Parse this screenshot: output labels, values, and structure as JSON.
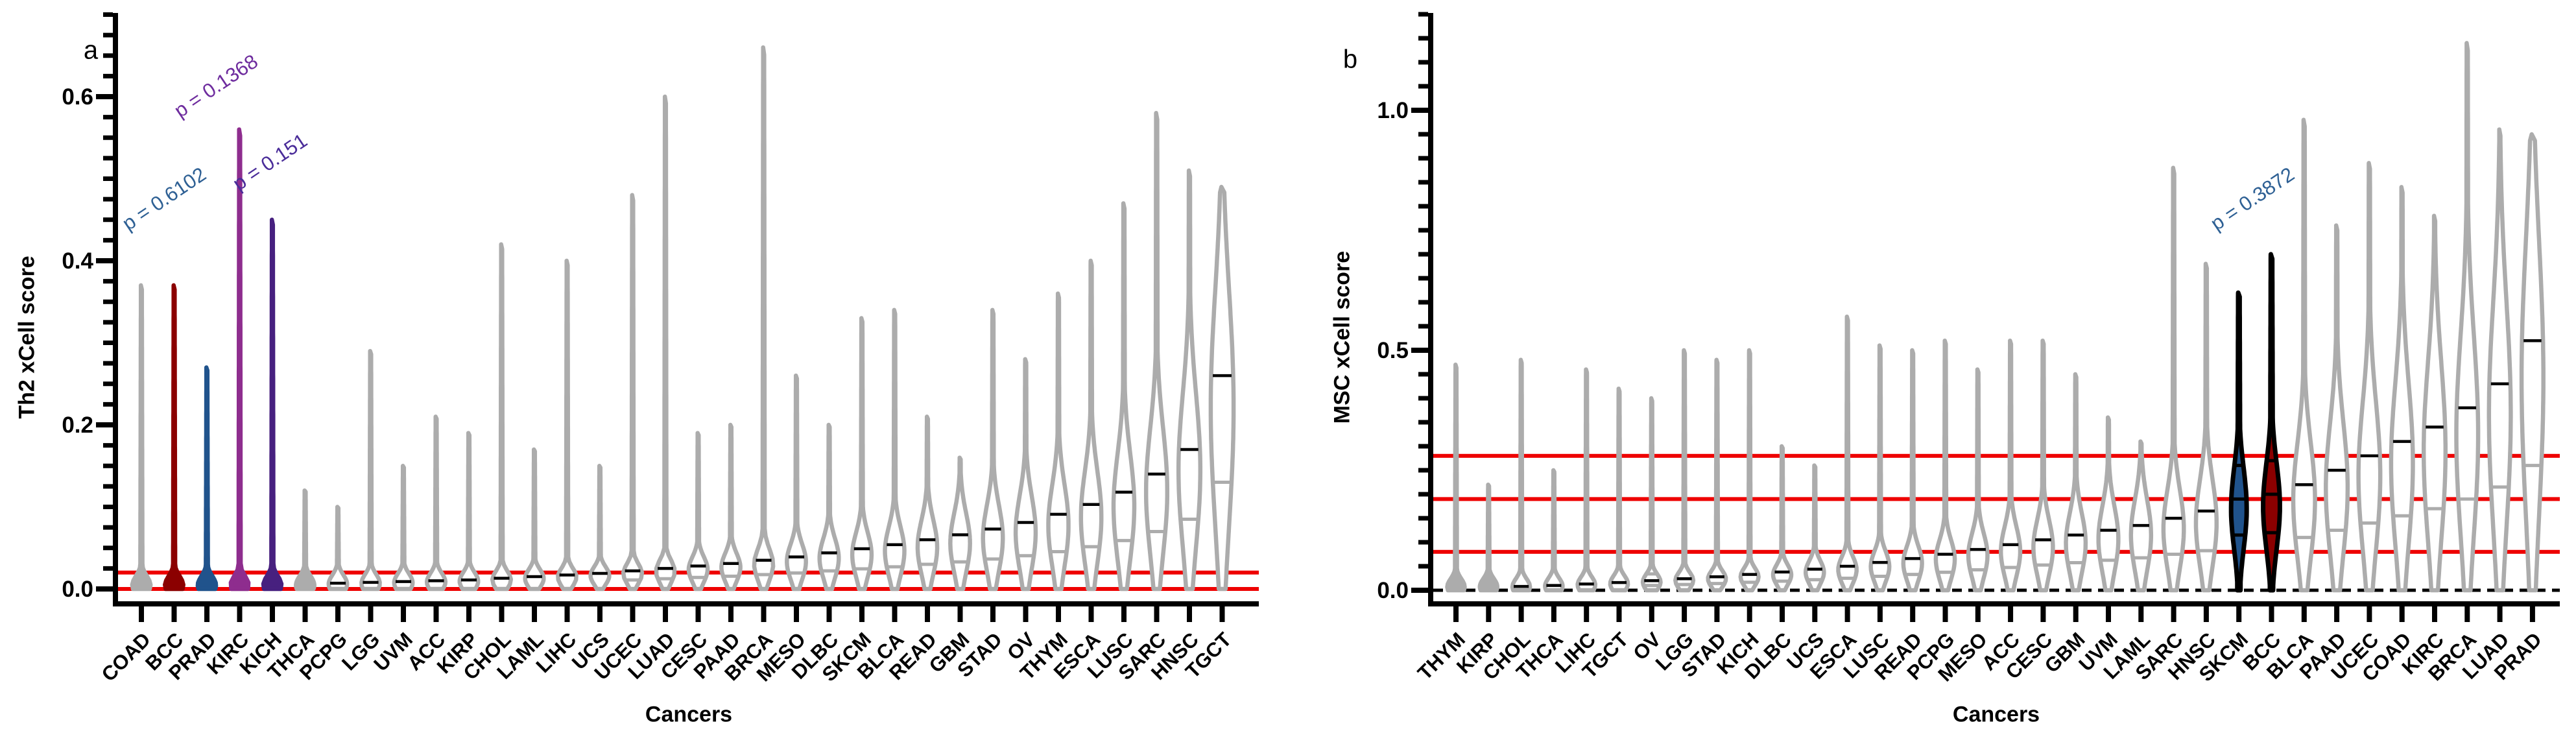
{
  "chart_data": [
    {
      "type": "violin",
      "panel_label": "a",
      "ylabel": "Th2 xCell score",
      "xlabel": "Cancers",
      "ylim": [
        0,
        0.7
      ],
      "y_major_ticks": [
        0.0,
        0.2,
        0.4,
        0.6
      ],
      "y_tick_labels": [
        "0.0",
        "0.2",
        "0.4",
        "0.6"
      ],
      "y_minor_step": 0.025,
      "grid": "off",
      "reference_lines": [
        {
          "y": 0.02,
          "color": "#EE0000",
          "style": "solid"
        },
        {
          "y": 0.0,
          "color": "#EE0000",
          "style": "solid"
        }
      ],
      "annotations": [
        {
          "text": "p = 0.6102",
          "color": "#2E6094",
          "cancer": "PRAD"
        },
        {
          "text": "p = 0.1368",
          "color": "#6E2C9E",
          "cancer": "KIRC"
        },
        {
          "text": "p = 0.151",
          "color": "#4A2C99",
          "cancer": "KICH"
        }
      ],
      "categories": [
        "COAD",
        "BCC",
        "PRAD",
        "KIRC",
        "KICH",
        "THCA",
        "PCPG",
        "LGG",
        "UVM",
        "ACC",
        "KIRP",
        "CHOL",
        "LAML",
        "LIHC",
        "UCS",
        "UCEC",
        "LUAD",
        "CESC",
        "PAAD",
        "BRCA",
        "MESO",
        "DLBC",
        "SKCM",
        "BLCA",
        "READ",
        "GBM",
        "STAD",
        "OV",
        "THYM",
        "ESCA",
        "LUSC",
        "SARC",
        "HNSC",
        "TGCT"
      ],
      "series": [
        {
          "cancer": "COAD",
          "max": 0.37,
          "median": 0.004,
          "fill": "#ACACAC",
          "stroke": "#ACACAC"
        },
        {
          "cancer": "BCC",
          "max": 0.37,
          "median": 0.004,
          "fill": "#8B0000",
          "stroke": "#8B0000"
        },
        {
          "cancer": "PRAD",
          "max": 0.27,
          "median": 0.004,
          "fill": "#20538C",
          "stroke": "#20538C"
        },
        {
          "cancer": "KIRC",
          "max": 0.56,
          "median": 0.005,
          "fill": "#8E2D8E",
          "stroke": "#8E2D8E"
        },
        {
          "cancer": "KICH",
          "max": 0.45,
          "median": 0.005,
          "fill": "#47207F",
          "stroke": "#47207F"
        },
        {
          "cancer": "THCA",
          "max": 0.12,
          "median": 0.005,
          "fill": "#ACACAC",
          "stroke": "#ACACAC"
        },
        {
          "cancer": "PCPG",
          "max": 0.1,
          "median": 0.007,
          "fill": "#FFFFFF",
          "stroke": "#ACACAC"
        },
        {
          "cancer": "LGG",
          "max": 0.29,
          "median": 0.008,
          "fill": "#FFFFFF",
          "stroke": "#ACACAC"
        },
        {
          "cancer": "UVM",
          "max": 0.15,
          "median": 0.009,
          "fill": "#FFFFFF",
          "stroke": "#ACACAC"
        },
        {
          "cancer": "ACC",
          "max": 0.21,
          "median": 0.01,
          "fill": "#FFFFFF",
          "stroke": "#ACACAC"
        },
        {
          "cancer": "KIRP",
          "max": 0.19,
          "median": 0.011,
          "fill": "#FFFFFF",
          "stroke": "#ACACAC"
        },
        {
          "cancer": "CHOL",
          "max": 0.42,
          "median": 0.013,
          "fill": "#FFFFFF",
          "stroke": "#ACACAC"
        },
        {
          "cancer": "LAML",
          "max": 0.17,
          "median": 0.015,
          "fill": "#FFFFFF",
          "stroke": "#ACACAC"
        },
        {
          "cancer": "LIHC",
          "max": 0.4,
          "median": 0.017,
          "fill": "#FFFFFF",
          "stroke": "#ACACAC"
        },
        {
          "cancer": "UCS",
          "max": 0.15,
          "median": 0.019,
          "fill": "#FFFFFF",
          "stroke": "#ACACAC"
        },
        {
          "cancer": "UCEC",
          "max": 0.48,
          "median": 0.022,
          "fill": "#FFFFFF",
          "stroke": "#ACACAC"
        },
        {
          "cancer": "LUAD",
          "max": 0.6,
          "median": 0.025,
          "fill": "#FFFFFF",
          "stroke": "#ACACAC"
        },
        {
          "cancer": "CESC",
          "max": 0.19,
          "median": 0.028,
          "fill": "#FFFFFF",
          "stroke": "#ACACAC"
        },
        {
          "cancer": "PAAD",
          "max": 0.2,
          "median": 0.031,
          "fill": "#FFFFFF",
          "stroke": "#ACACAC"
        },
        {
          "cancer": "BRCA",
          "max": 0.66,
          "median": 0.035,
          "fill": "#FFFFFF",
          "stroke": "#ACACAC"
        },
        {
          "cancer": "MESO",
          "max": 0.26,
          "median": 0.039,
          "fill": "#FFFFFF",
          "stroke": "#ACACAC"
        },
        {
          "cancer": "DLBC",
          "max": 0.2,
          "median": 0.044,
          "fill": "#FFFFFF",
          "stroke": "#ACACAC"
        },
        {
          "cancer": "SKCM",
          "max": 0.33,
          "median": 0.049,
          "fill": "#FFFFFF",
          "stroke": "#ACACAC"
        },
        {
          "cancer": "BLCA",
          "max": 0.34,
          "median": 0.054,
          "fill": "#FFFFFF",
          "stroke": "#ACACAC"
        },
        {
          "cancer": "READ",
          "max": 0.21,
          "median": 0.06,
          "fill": "#FFFFFF",
          "stroke": "#ACACAC"
        },
        {
          "cancer": "GBM",
          "max": 0.16,
          "median": 0.066,
          "fill": "#FFFFFF",
          "stroke": "#ACACAC"
        },
        {
          "cancer": "STAD",
          "max": 0.34,
          "median": 0.073,
          "fill": "#FFFFFF",
          "stroke": "#ACACAC"
        },
        {
          "cancer": "OV",
          "max": 0.28,
          "median": 0.081,
          "fill": "#FFFFFF",
          "stroke": "#ACACAC"
        },
        {
          "cancer": "THYM",
          "max": 0.36,
          "median": 0.091,
          "fill": "#FFFFFF",
          "stroke": "#ACACAC"
        },
        {
          "cancer": "ESCA",
          "max": 0.4,
          "median": 0.103,
          "fill": "#FFFFFF",
          "stroke": "#ACACAC"
        },
        {
          "cancer": "LUSC",
          "max": 0.47,
          "median": 0.118,
          "fill": "#FFFFFF",
          "stroke": "#ACACAC"
        },
        {
          "cancer": "SARC",
          "max": 0.58,
          "median": 0.14,
          "fill": "#FFFFFF",
          "stroke": "#ACACAC"
        },
        {
          "cancer": "HNSC",
          "max": 0.51,
          "median": 0.17,
          "fill": "#FFFFFF",
          "stroke": "#ACACAC"
        },
        {
          "cancer": "TGCT",
          "max": 0.49,
          "median": 0.26,
          "fill": "#FFFFFF",
          "stroke": "#ACACAC"
        }
      ]
    },
    {
      "type": "violin",
      "panel_label": "b",
      "ylabel": "MSC xCell score",
      "xlabel": "Cancers",
      "ylim": [
        0,
        1.2
      ],
      "y_major_ticks": [
        0.0,
        0.5,
        1.0
      ],
      "y_tick_labels": [
        "0.0",
        "0.5",
        "1.0"
      ],
      "y_minor_step": 0.05,
      "grid": "off",
      "reference_lines": [
        {
          "y": 0.28,
          "color": "#EE0000",
          "style": "solid"
        },
        {
          "y": 0.19,
          "color": "#EE0000",
          "style": "solid"
        },
        {
          "y": 0.08,
          "color": "#EE0000",
          "style": "solid"
        },
        {
          "y": 0.0,
          "color": "#000000",
          "style": "dashed"
        }
      ],
      "annotations": [
        {
          "text": "p = 0.3872",
          "color": "#2E6094",
          "cancer": "SKCM"
        }
      ],
      "categories": [
        "THYM",
        "KIRP",
        "CHOL",
        "THCA",
        "LIHC",
        "TGCT",
        "OV",
        "LGG",
        "STAD",
        "KICH",
        "DLBC",
        "UCS",
        "ESCA",
        "LUSC",
        "READ",
        "PCPG",
        "MESO",
        "ACC",
        "CESC",
        "GBM",
        "UVM",
        "LAML",
        "SARC",
        "HNSC",
        "SKCM",
        "BCC",
        "BLCA",
        "PAAD",
        "UCEC",
        "COAD",
        "KIRC",
        "BRCA",
        "LUAD",
        "PRAD"
      ],
      "series": [
        {
          "cancer": "THYM",
          "max": 0.47,
          "median": 0.004,
          "fill": "#ACACAC",
          "stroke": "#ACACAC"
        },
        {
          "cancer": "KIRP",
          "max": 0.22,
          "median": 0.006,
          "fill": "#ACACAC",
          "stroke": "#ACACAC"
        },
        {
          "cancer": "CHOL",
          "max": 0.48,
          "median": 0.008,
          "fill": "#FFFFFF",
          "stroke": "#ACACAC"
        },
        {
          "cancer": "THCA",
          "max": 0.25,
          "median": 0.01,
          "fill": "#FFFFFF",
          "stroke": "#ACACAC"
        },
        {
          "cancer": "LIHC",
          "max": 0.46,
          "median": 0.013,
          "fill": "#FFFFFF",
          "stroke": "#ACACAC"
        },
        {
          "cancer": "TGCT",
          "max": 0.42,
          "median": 0.016,
          "fill": "#FFFFFF",
          "stroke": "#ACACAC"
        },
        {
          "cancer": "OV",
          "max": 0.4,
          "median": 0.02,
          "fill": "#FFFFFF",
          "stroke": "#ACACAC"
        },
        {
          "cancer": "LGG",
          "max": 0.5,
          "median": 0.024,
          "fill": "#FFFFFF",
          "stroke": "#ACACAC"
        },
        {
          "cancer": "STAD",
          "max": 0.48,
          "median": 0.028,
          "fill": "#FFFFFF",
          "stroke": "#ACACAC"
        },
        {
          "cancer": "KICH",
          "max": 0.5,
          "median": 0.033,
          "fill": "#FFFFFF",
          "stroke": "#ACACAC"
        },
        {
          "cancer": "DLBC",
          "max": 0.3,
          "median": 0.038,
          "fill": "#FFFFFF",
          "stroke": "#ACACAC"
        },
        {
          "cancer": "UCS",
          "max": 0.26,
          "median": 0.044,
          "fill": "#FFFFFF",
          "stroke": "#ACACAC"
        },
        {
          "cancer": "ESCA",
          "max": 0.57,
          "median": 0.05,
          "fill": "#FFFFFF",
          "stroke": "#ACACAC"
        },
        {
          "cancer": "LUSC",
          "max": 0.51,
          "median": 0.058,
          "fill": "#FFFFFF",
          "stroke": "#ACACAC"
        },
        {
          "cancer": "READ",
          "max": 0.5,
          "median": 0.066,
          "fill": "#FFFFFF",
          "stroke": "#ACACAC"
        },
        {
          "cancer": "PCPG",
          "max": 0.52,
          "median": 0.075,
          "fill": "#FFFFFF",
          "stroke": "#ACACAC"
        },
        {
          "cancer": "MESO",
          "max": 0.46,
          "median": 0.085,
          "fill": "#FFFFFF",
          "stroke": "#ACACAC"
        },
        {
          "cancer": "ACC",
          "max": 0.52,
          "median": 0.095,
          "fill": "#FFFFFF",
          "stroke": "#ACACAC"
        },
        {
          "cancer": "CESC",
          "max": 0.52,
          "median": 0.105,
          "fill": "#FFFFFF",
          "stroke": "#ACACAC"
        },
        {
          "cancer": "GBM",
          "max": 0.45,
          "median": 0.115,
          "fill": "#FFFFFF",
          "stroke": "#ACACAC"
        },
        {
          "cancer": "UVM",
          "max": 0.36,
          "median": 0.125,
          "fill": "#FFFFFF",
          "stroke": "#ACACAC"
        },
        {
          "cancer": "LAML",
          "max": 0.31,
          "median": 0.135,
          "fill": "#FFFFFF",
          "stroke": "#ACACAC"
        },
        {
          "cancer": "SARC",
          "max": 0.88,
          "median": 0.15,
          "fill": "#FFFFFF",
          "stroke": "#ACACAC"
        },
        {
          "cancer": "HNSC",
          "max": 0.68,
          "median": 0.165,
          "fill": "#FFFFFF",
          "stroke": "#ACACAC"
        },
        {
          "cancer": "SKCM",
          "max": 0.62,
          "median": 0.19,
          "fill": "#20538C",
          "stroke": "#000000",
          "bulge_center": 0.17,
          "bulge_spread": 0.085,
          "bulge_amp": 0.62,
          "spike": 0.13,
          "quartiles": [
            0.115,
            0.19,
            0.26
          ]
        },
        {
          "cancer": "BCC",
          "max": 0.7,
          "median": 0.2,
          "fill": "#8B0000",
          "stroke": "#000000",
          "bulge_center": 0.175,
          "bulge_spread": 0.09,
          "bulge_amp": 0.66,
          "spike": 0.13,
          "quartiles": [
            0.12,
            0.2,
            0.27
          ]
        },
        {
          "cancer": "BLCA",
          "max": 0.98,
          "median": 0.22,
          "fill": "#FFFFFF",
          "stroke": "#ACACAC"
        },
        {
          "cancer": "PAAD",
          "max": 0.76,
          "median": 0.25,
          "fill": "#FFFFFF",
          "stroke": "#ACACAC"
        },
        {
          "cancer": "UCEC",
          "max": 0.89,
          "median": 0.28,
          "fill": "#FFFFFF",
          "stroke": "#ACACAC"
        },
        {
          "cancer": "COAD",
          "max": 0.84,
          "median": 0.31,
          "fill": "#FFFFFF",
          "stroke": "#ACACAC"
        },
        {
          "cancer": "KIRC",
          "max": 0.78,
          "median": 0.34,
          "fill": "#FFFFFF",
          "stroke": "#ACACAC"
        },
        {
          "cancer": "BRCA",
          "max": 1.14,
          "median": 0.38,
          "fill": "#FFFFFF",
          "stroke": "#ACACAC"
        },
        {
          "cancer": "LUAD",
          "max": 0.96,
          "median": 0.43,
          "fill": "#FFFFFF",
          "stroke": "#ACACAC"
        },
        {
          "cancer": "PRAD",
          "max": 0.95,
          "median": 0.52,
          "fill": "#FFFFFF",
          "stroke": "#ACACAC"
        }
      ]
    }
  ],
  "colors": {
    "violin_gray": "#ACACAC",
    "reference_red": "#EE0000",
    "highlight_dark_red": "#8B0000",
    "highlight_blue": "#20538C",
    "highlight_magenta": "#8E2D8E",
    "highlight_dark_violet": "#47207F",
    "median_black": "#000000"
  }
}
